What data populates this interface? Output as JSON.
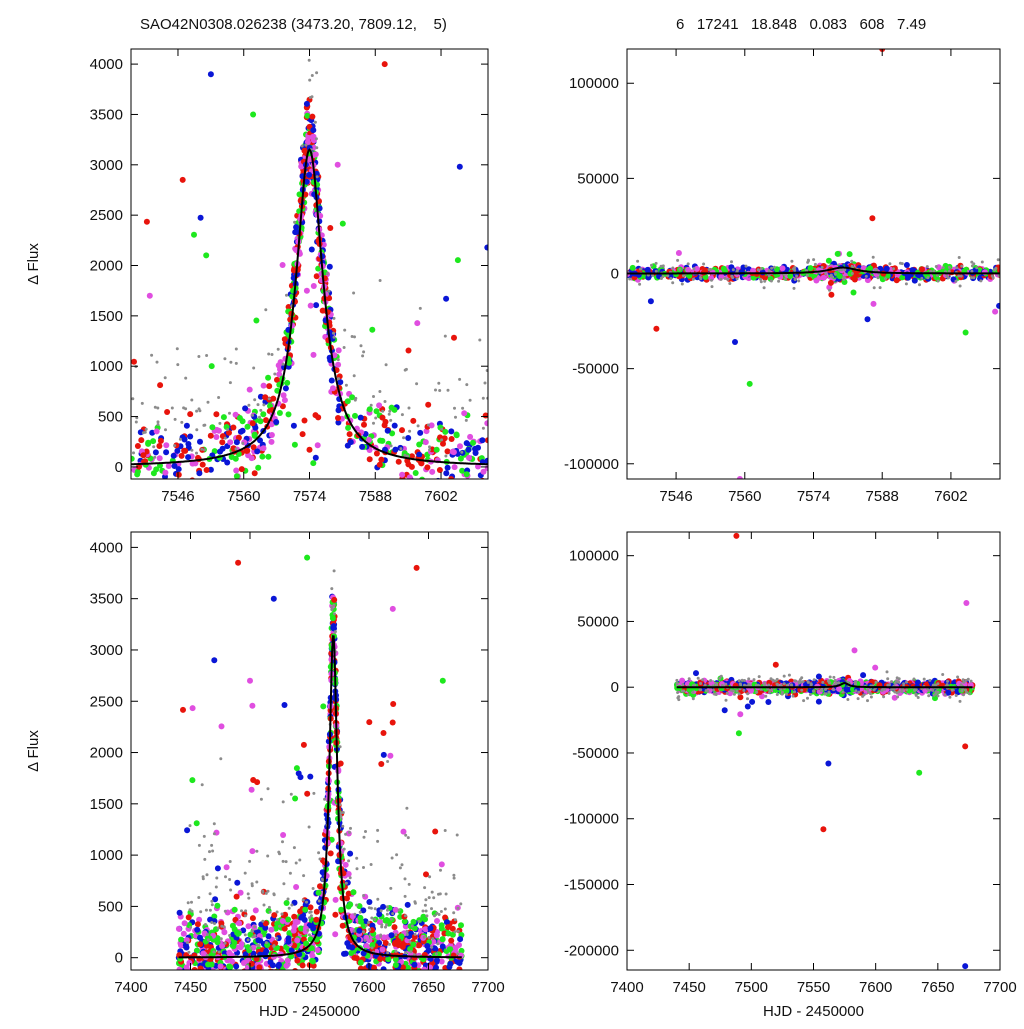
{
  "header": {
    "title_left": "SAO42N0308.026238 (3473.20, 7809.12,    5)",
    "title_right": "6   17241   18.848   0.083   608   7.49"
  },
  "colors": {
    "red": "#e8140c",
    "blue": "#0a16d6",
    "green": "#1ee81e",
    "magenta": "#e04ee0",
    "gray": "#8c8c8c",
    "fit": "#000000"
  },
  "chart_data": [
    {
      "id": "top-left",
      "type": "scatter",
      "xlim": [
        7536,
        7612
      ],
      "ylim": [
        -120,
        4150
      ],
      "xticks": [
        7546,
        7560,
        7574,
        7588,
        7602
      ],
      "yticks": [
        0,
        500,
        1000,
        1500,
        2000,
        2500,
        3000,
        3500,
        4000
      ],
      "xlabel": "",
      "ylabel": "Δ Flux",
      "model": {
        "shape": "lorentzian",
        "t0": 7574,
        "amplitude": 3150,
        "width": 3.5
      },
      "series": [
        {
          "color": "red",
          "spread": 1.0
        },
        {
          "color": "blue",
          "spread": 1.2
        },
        {
          "color": "green",
          "spread": 1.0
        },
        {
          "color": "magenta",
          "spread": 0.8
        },
        {
          "color": "gray",
          "spread": 1.1
        }
      ],
      "outliers": [
        [
          7547,
          2850
        ],
        [
          7553,
          3900
        ],
        [
          7562,
          3500
        ],
        [
          7580,
          3000
        ],
        [
          7590,
          4000
        ],
        [
          7606,
          2980
        ],
        [
          7552,
          2100
        ],
        [
          7540,
          1700
        ]
      ]
    },
    {
      "id": "top-right",
      "type": "scatter",
      "xlim": [
        7536,
        7612
      ],
      "ylim": [
        -108000,
        118000
      ],
      "xticks": [
        7546,
        7560,
        7574,
        7588,
        7602
      ],
      "yticks": [
        -100000,
        -50000,
        0,
        50000,
        100000
      ],
      "xlabel": "",
      "ylabel": "",
      "model": {
        "shape": "flat-bump",
        "t0": 7580,
        "amplitude": 3150,
        "width": 3.5
      },
      "outliers": [
        [
          7542,
          -29000
        ],
        [
          7558,
          -36000
        ],
        [
          7561,
          -58000
        ],
        [
          7559,
          -108000
        ],
        [
          7586,
          29000
        ],
        [
          7585,
          -24000
        ],
        [
          7605,
          -31000
        ],
        [
          7611,
          -20000
        ],
        [
          7588,
          118000
        ]
      ]
    },
    {
      "id": "bottom-left",
      "type": "scatter",
      "xlim": [
        7400,
        7700
      ],
      "ylim": [
        -120,
        4150
      ],
      "xticks": [
        7400,
        7450,
        7500,
        7550,
        7600,
        7650,
        7700
      ],
      "yticks": [
        0,
        500,
        1000,
        1500,
        2000,
        2500,
        3000,
        3500,
        4000
      ],
      "xlabel": "HJD - 2450000",
      "ylabel": "Δ Flux",
      "model": {
        "shape": "lorentzian",
        "t0": 7570,
        "amplitude": 3150,
        "width": 4.0
      },
      "outliers": [
        [
          7490,
          3850
        ],
        [
          7520,
          3500
        ],
        [
          7548,
          3900
        ],
        [
          7620,
          3400
        ],
        [
          7640,
          3800
        ],
        [
          7470,
          2900
        ],
        [
          7662,
          2700
        ],
        [
          7500,
          2700
        ]
      ]
    },
    {
      "id": "bottom-right",
      "type": "scatter",
      "xlim": [
        7400,
        7700
      ],
      "ylim": [
        -215000,
        118000
      ],
      "xticks": [
        7400,
        7450,
        7500,
        7550,
        7600,
        7650,
        7700
      ],
      "yticks": [
        -200000,
        -150000,
        -100000,
        -50000,
        0,
        50000,
        100000
      ],
      "xlabel": "HJD - 2450000",
      "ylabel": "",
      "model": {
        "shape": "flat-bump",
        "t0": 7575,
        "amplitude": 3150,
        "width": 4.0
      },
      "outliers": [
        [
          7558,
          -108000
        ],
        [
          7562,
          -58000
        ],
        [
          7635,
          -65000
        ],
        [
          7673,
          64000
        ],
        [
          7672,
          -45000
        ],
        [
          7672,
          -212000
        ],
        [
          7490,
          -35000
        ],
        [
          7583,
          28000
        ],
        [
          7488,
          115000
        ]
      ]
    }
  ]
}
